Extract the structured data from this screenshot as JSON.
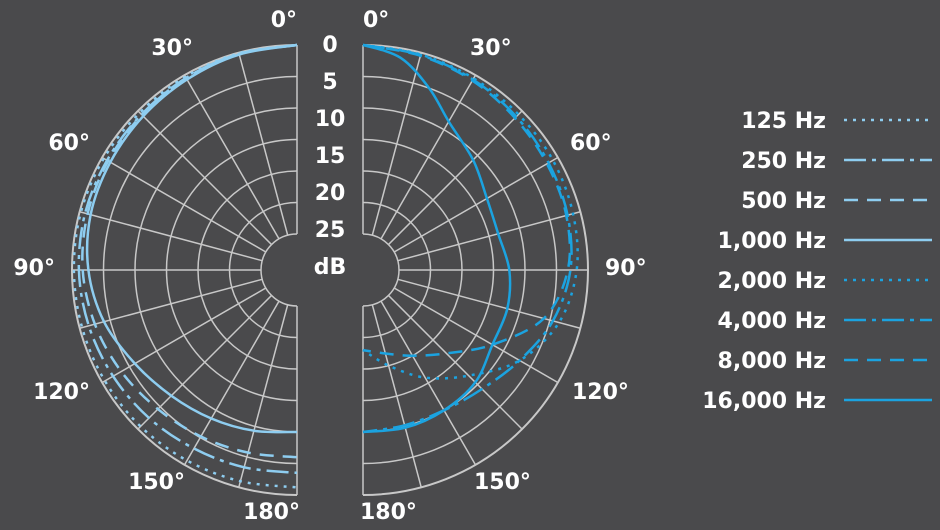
{
  "chart_data": {
    "type": "polar",
    "title": "",
    "panels": [
      "left",
      "right"
    ],
    "angle_labels": [
      "0°",
      "30°",
      "60°",
      "90°",
      "120°",
      "150°",
      "180°"
    ],
    "angle_ticks": [
      0,
      30,
      60,
      90,
      120,
      150,
      180
    ],
    "radial_labels": [
      "0",
      "5",
      "10",
      "15",
      "20",
      "25",
      "dB"
    ],
    "radial_ticks_db": [
      0,
      5,
      10,
      15,
      20,
      25
    ],
    "radial_unit": "dB",
    "grid": true,
    "legend_position": "right",
    "colors": {
      "light": "#8ecdf0",
      "dark": "#1ba3e0",
      "grid": "#c8c8c8",
      "background": "#4a4a4c",
      "text": "#ffffff"
    },
    "series": [
      {
        "name": "125 Hz",
        "panel": "left",
        "color": "#8ecdf0",
        "dash": "dot",
        "angles": [
          0,
          15,
          30,
          45,
          60,
          75,
          90,
          105,
          120,
          135,
          150,
          165,
          180
        ],
        "db": [
          0,
          0.1,
          0.3,
          0.4,
          0.3,
          0.2,
          0.3,
          0.4,
          0.5,
          0.6,
          0.8,
          1.0,
          1.2
        ]
      },
      {
        "name": "250 Hz",
        "panel": "left",
        "color": "#8ecdf0",
        "dash": "dashdot",
        "angles": [
          0,
          15,
          30,
          45,
          60,
          75,
          90,
          105,
          120,
          135,
          150,
          165,
          180
        ],
        "db": [
          0,
          0.2,
          0.5,
          0.8,
          0.9,
          0.9,
          1.1,
          1.5,
          2.0,
          2.5,
          3.0,
          3.3,
          3.5
        ]
      },
      {
        "name": "500 Hz",
        "panel": "left",
        "color": "#8ecdf0",
        "dash": "dash",
        "angles": [
          0,
          15,
          30,
          45,
          60,
          75,
          90,
          105,
          120,
          135,
          150,
          165,
          180
        ],
        "db": [
          0,
          0.2,
          0.5,
          0.9,
          1.1,
          1.3,
          1.7,
          2.5,
          3.5,
          4.5,
          5.2,
          5.7,
          6.0
        ]
      },
      {
        "name": "1,000 Hz",
        "panel": "left",
        "color": "#8ecdf0",
        "dash": "solid",
        "angles": [
          0,
          15,
          30,
          45,
          60,
          75,
          90,
          105,
          120,
          135,
          150,
          165,
          180
        ],
        "db": [
          0,
          0.3,
          0.8,
          1.2,
          1.5,
          1.8,
          2.6,
          4.0,
          6.0,
          7.5,
          8.5,
          9.3,
          10.0
        ]
      },
      {
        "name": "2,000 Hz",
        "panel": "right",
        "color": "#1ba3e0",
        "dash": "dot",
        "angles": [
          0,
          15,
          30,
          45,
          60,
          75,
          90,
          105,
          120,
          135,
          150,
          165,
          180
        ],
        "db": [
          0,
          0.3,
          0.6,
          0.8,
          0.9,
          1.2,
          1.8,
          3.5,
          7.0,
          12.0,
          16.0,
          20.0,
          23.0
        ]
      },
      {
        "name": "4,000 Hz",
        "panel": "right",
        "color": "#1ba3e0",
        "dash": "dashdot",
        "angles": [
          0,
          15,
          30,
          45,
          60,
          75,
          90,
          105,
          120,
          135,
          150,
          165,
          180
        ],
        "db": [
          0,
          0.4,
          0.8,
          1.3,
          1.7,
          2.1,
          2.8,
          4.5,
          7.0,
          9.0,
          10.0,
          10.2,
          10.0
        ]
      },
      {
        "name": "8,000 Hz",
        "panel": "right",
        "color": "#1ba3e0",
        "dash": "dash",
        "angles": [
          0,
          15,
          30,
          45,
          60,
          75,
          90,
          105,
          120,
          135,
          150,
          165,
          180
        ],
        "db": [
          0,
          0.5,
          1.0,
          1.6,
          2.0,
          2.3,
          3.2,
          6.0,
          12.0,
          17.0,
          20.0,
          22.0,
          23.0
        ]
      },
      {
        "name": "16,000 Hz",
        "panel": "right",
        "color": "#1ba3e0",
        "dash": "solid",
        "angles": [
          0,
          10,
          20,
          30,
          45,
          60,
          75,
          90,
          105,
          120,
          135,
          150,
          165,
          180
        ],
        "db": [
          0,
          1.5,
          5.0,
          8.5,
          11.0,
          13.0,
          13.5,
          12.5,
          12.0,
          12.0,
          10.5,
          10.0,
          9.8,
          10.0
        ]
      }
    ]
  }
}
